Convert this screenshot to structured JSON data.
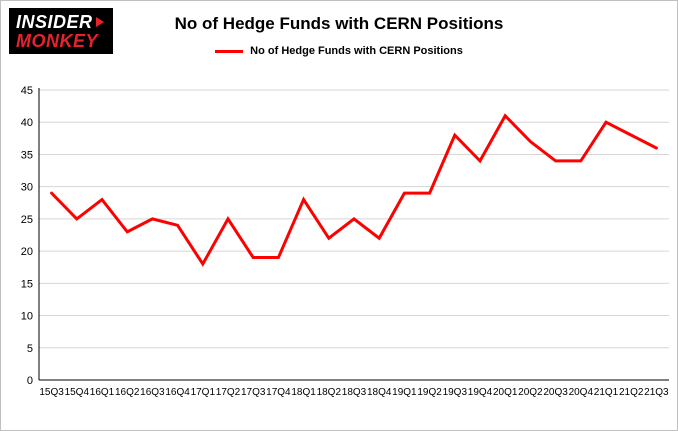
{
  "logo": {
    "line1": "INSIDER",
    "line2": "MONKEY"
  },
  "header": {
    "title": "No of Hedge Funds with CERN Positions"
  },
  "legend": {
    "label": "No of Hedge Funds with CERN Positions",
    "color": "#ff0000"
  },
  "chart_data": {
    "type": "line",
    "title": "No of Hedge Funds with CERN Positions",
    "categories": [
      "15Q3",
      "15Q4",
      "16Q1",
      "16Q2",
      "16Q3",
      "16Q4",
      "17Q1",
      "17Q2",
      "17Q3",
      "17Q4",
      "18Q1",
      "18Q2",
      "18Q3",
      "18Q4",
      "19Q1",
      "19Q2",
      "19Q3",
      "19Q4",
      "20Q1",
      "20Q2",
      "20Q3",
      "20Q4",
      "21Q1",
      "21Q2",
      "21Q3"
    ],
    "series": [
      {
        "name": "No of Hedge Funds with CERN Positions",
        "values": [
          29,
          25,
          28,
          23,
          25,
          24,
          18,
          25,
          19,
          19,
          28,
          22,
          25,
          22,
          29,
          29,
          38,
          34,
          41,
          37,
          34,
          34,
          40,
          38,
          36
        ]
      }
    ],
    "xlabel": "",
    "ylabel": "",
    "ylim": [
      0,
      45
    ],
    "ytick_step": 5,
    "grid": true,
    "grid_color": "#d6d6d6",
    "axis_color": "#000000",
    "line_color": "#ff0000",
    "legend_position": "top"
  }
}
